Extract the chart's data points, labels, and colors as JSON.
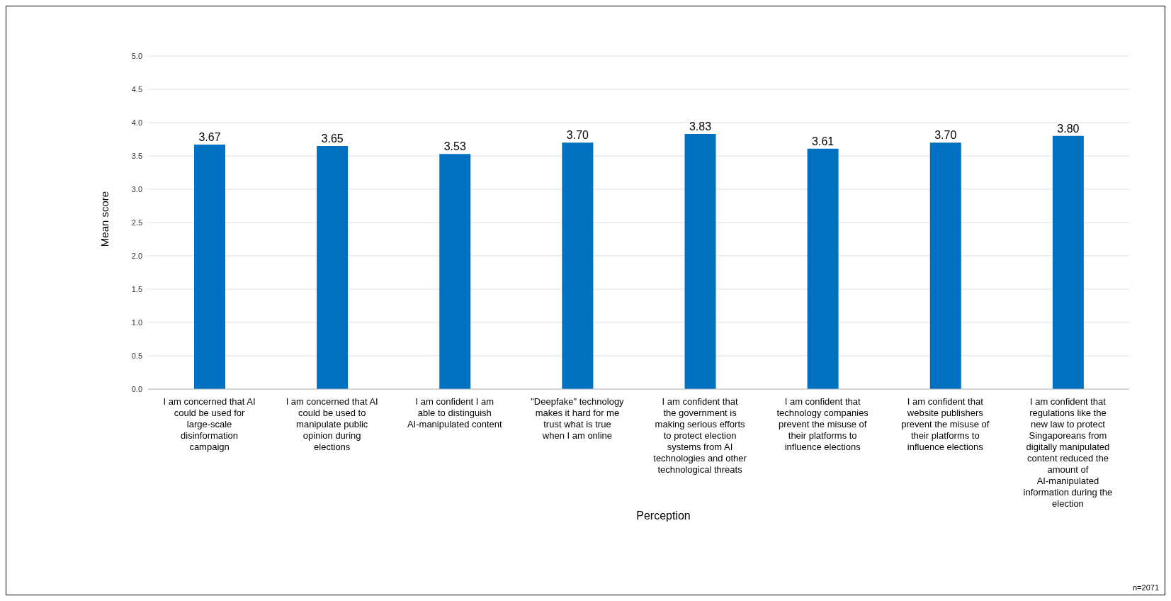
{
  "chart_data": {
    "type": "bar",
    "xlabel": "Perception",
    "ylabel": "Mean score",
    "categories": [
      "I am concerned that AI could be used for large-scale disinformation campaign",
      "I am concerned that AI could be used to manipulate public opinion during elections",
      "I am confident I am able to distinguish AI-manipulated content",
      "\"Deepfake\" technology makes it hard for me trust what is true when I am online",
      "I am confident that the government is making serious efforts to protect election systems from AI technologies and other technological threats",
      "I am confident that technology companies prevent the misuse of their platforms to influence elections",
      "I am confident that website publishers prevent the misuse of their platforms to influence elections",
      "I am confident that regulations like the new law to protect Singaporeans from digitally manipulated content reduced the amount of AI-manipulated information during the election"
    ],
    "values": [
      3.67,
      3.65,
      3.53,
      3.7,
      3.83,
      3.61,
      3.7,
      3.8
    ],
    "color": "#0070c0",
    "ylim": [
      0,
      5
    ],
    "yticks": [
      {
        "value": 0,
        "label": "0.0"
      },
      {
        "value": 0.5,
        "label": "0.5"
      },
      {
        "value": 1,
        "label": "1.0"
      },
      {
        "value": 1.5,
        "label": "1.5"
      },
      {
        "value": 2,
        "label": "2.0"
      },
      {
        "value": 2.5,
        "label": "2.5"
      },
      {
        "value": 3,
        "label": "3.0"
      },
      {
        "value": 3.5,
        "label": "3.5"
      },
      {
        "value": 4,
        "label": "4.0"
      },
      {
        "value": 4.5,
        "label": "4.5"
      },
      {
        "value": 5,
        "label": "5.0"
      }
    ],
    "value_labels": [
      "3.67",
      "3.65",
      "3.53",
      "3.70",
      "3.83",
      "3.61",
      "3.70",
      "3.80"
    ],
    "grid": "y",
    "annotations": [
      "n=2071"
    ]
  }
}
